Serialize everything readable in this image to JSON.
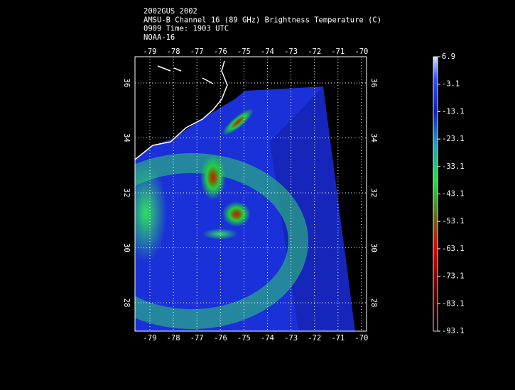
{
  "header": {
    "lines": [
      "2002GUS 2002",
      "AMSU-B Channel 16 (89 GHz) Brightness Temperature (C)",
      "0909 Time: 1903 UTC",
      "NOAA-16"
    ]
  },
  "map": {
    "lon_ticks": [
      -79,
      -78,
      -77,
      -76,
      -75,
      -74,
      -73,
      -72,
      -71,
      -70
    ],
    "lat_ticks": [
      28,
      30,
      32,
      34,
      36
    ]
  },
  "colorbar": {
    "labels": [
      6.9,
      -3.1,
      -13.1,
      -23.1,
      -33.1,
      -43.1,
      -53.1,
      -63.1,
      -73.1,
      -83.1,
      -93.1
    ]
  }
}
